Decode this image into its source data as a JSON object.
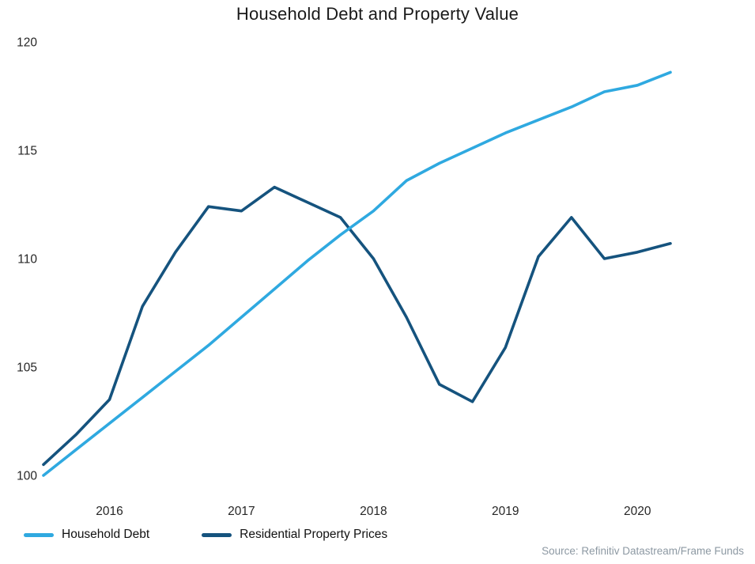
{
  "title": "Household Debt and Property Value",
  "source_credit": "Source: Refinitiv Datastream/Frame Funds",
  "colors": {
    "household_debt": "#2fa9e0",
    "property_prices": "#15537e",
    "title_text": "#1a1a1a",
    "axis_text": "#262626",
    "source_text": "#8d99a3",
    "background": "#ffffff"
  },
  "legend": {
    "items": [
      {
        "label": "Household Debt",
        "series": "household_debt"
      },
      {
        "label": "Residential Property Prices",
        "series": "property_prices"
      }
    ]
  },
  "chart_data": {
    "type": "line",
    "title": "Household Debt and Property Value",
    "xlabel": "",
    "ylabel": "",
    "x_unit": "quarterly, decimal years",
    "x": [
      2015.5,
      2015.75,
      2016.0,
      2016.25,
      2016.5,
      2016.75,
      2017.0,
      2017.25,
      2017.5,
      2017.75,
      2018.0,
      2018.25,
      2018.5,
      2018.75,
      2019.0,
      2019.25,
      2019.5,
      2019.75,
      2020.0,
      2020.25
    ],
    "series": [
      {
        "name": "Household Debt",
        "color": "#2fa9e0",
        "values": [
          100.0,
          101.2,
          102.4,
          103.6,
          104.8,
          106.0,
          107.3,
          108.6,
          109.9,
          111.1,
          112.2,
          113.6,
          114.4,
          115.1,
          115.8,
          116.4,
          117.0,
          117.7,
          118.0,
          118.6
        ]
      },
      {
        "name": "Residential Property Prices",
        "color": "#15537e",
        "values": [
          100.5,
          101.9,
          103.5,
          107.8,
          110.3,
          112.4,
          112.2,
          113.3,
          112.6,
          111.9,
          110.0,
          107.3,
          104.2,
          103.4,
          105.9,
          110.1,
          111.9,
          110.0,
          110.3,
          110.7
        ]
      }
    ],
    "xlim": [
      2015.5,
      2020.25
    ],
    "ylim": [
      100,
      120
    ],
    "yticks": [
      100,
      105,
      110,
      115,
      120
    ],
    "xticks": [
      2016,
      2017,
      2018,
      2019,
      2020
    ],
    "grid": false,
    "legend_position": "bottom-left"
  }
}
